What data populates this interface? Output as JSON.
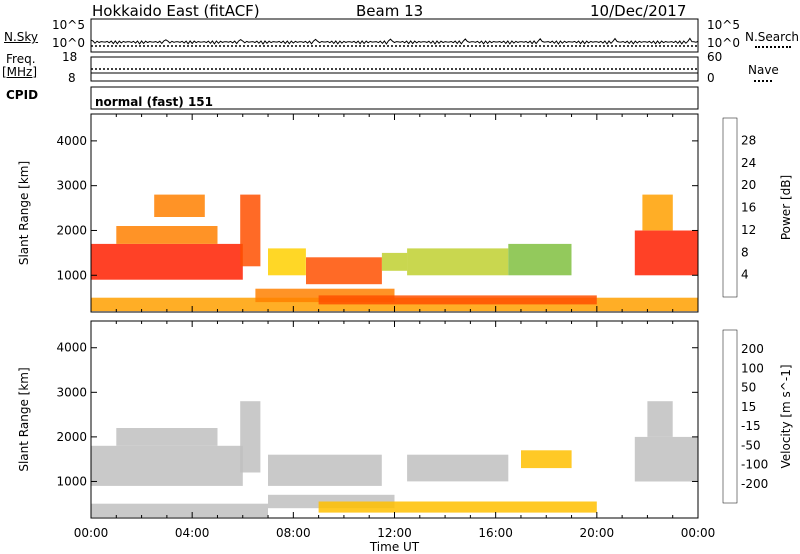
{
  "header": {
    "station": "Hokkaido East (fitACF)",
    "beam": "Beam 13",
    "date": "10/Dec/2017"
  },
  "noise_panel": {
    "left_label": "N.Sky",
    "right_label": "N.Search",
    "tick_top": "10^5",
    "tick_bottom": "10^0"
  },
  "freq_panel": {
    "left_label_line1": "Freq.",
    "left_label_line2": "[MHz]",
    "left_tick_top": "18",
    "left_tick_bottom": "8",
    "right_label": "Nave",
    "right_tick_top": "60",
    "right_tick_bottom": "0",
    "cpid_label": "CPID",
    "cpid_value": "normal (fast) 151"
  },
  "colors": {
    "power": [
      "#1010ff",
      "#2060c0",
      "#208a60",
      "#50a060",
      "#80c040",
      "#c0d030",
      "#ffd000",
      "#ffa000",
      "#ff8000",
      "#ff5000",
      "#ff2000",
      "#ff0000"
    ],
    "velocity": [
      "#ff0000",
      "#ff5000",
      "#ff8000",
      "#ffa000",
      "#ffc000",
      "#c0c0c0",
      "#c0c0c0",
      "#80c040",
      "#40b040",
      "#208a60",
      "#2060a0",
      "#1030c0"
    ]
  },
  "chart_data": [
    {
      "type": "heatmap",
      "name": "power",
      "ylabel": "Slant Range [km]",
      "xlabel": "",
      "xlim": [
        "00:00",
        "24:00"
      ],
      "ylim": [
        180,
        4600
      ],
      "x_ticks": [
        "00:00",
        "04:00",
        "08:00",
        "12:00",
        "16:00",
        "20:00",
        "00:00"
      ],
      "y_ticks": [
        1000,
        2000,
        3000,
        4000
      ],
      "colorbar": {
        "label": "Power [dB]",
        "min": 0,
        "max": 32,
        "ticks": [
          "28",
          "24",
          "20",
          "16",
          "12",
          "8",
          "4"
        ]
      },
      "regions": [
        {
          "t": [
            0.0,
            6.0
          ],
          "r": [
            900,
            1700
          ],
          "value": 28
        },
        {
          "t": [
            1.0,
            5.0
          ],
          "r": [
            1700,
            2100
          ],
          "value": 22
        },
        {
          "t": [
            2.5,
            4.5
          ],
          "r": [
            2300,
            2800
          ],
          "value": 22
        },
        {
          "t": [
            5.9,
            6.7
          ],
          "r": [
            1200,
            2800
          ],
          "value": 24
        },
        {
          "t": [
            7.0,
            8.5
          ],
          "r": [
            1000,
            1600
          ],
          "value": 18
        },
        {
          "t": [
            8.5,
            11.5
          ],
          "r": [
            800,
            1400
          ],
          "value": 26
        },
        {
          "t": [
            11.5,
            12.5
          ],
          "r": [
            1100,
            1500
          ],
          "value": 14
        },
        {
          "t": [
            12.5,
            16.5
          ],
          "r": [
            1000,
            1600
          ],
          "value": 14
        },
        {
          "t": [
            16.5,
            19.0
          ],
          "r": [
            1000,
            1700
          ],
          "value": 12
        },
        {
          "t": [
            21.5,
            24.0
          ],
          "r": [
            1000,
            2000
          ],
          "value": 28
        },
        {
          "t": [
            21.8,
            23.0
          ],
          "r": [
            2000,
            2800
          ],
          "value": 20
        },
        {
          "t": [
            0.0,
            24.0
          ],
          "r": [
            200,
            500
          ],
          "value": 20
        },
        {
          "t": [
            6.5,
            12.0
          ],
          "r": [
            400,
            700
          ],
          "value": 22
        },
        {
          "t": [
            9.0,
            20.0
          ],
          "r": [
            350,
            550
          ],
          "value": 26
        }
      ]
    },
    {
      "type": "heatmap",
      "name": "velocity",
      "ylabel": "Slant Range [km]",
      "xlabel": "Time UT",
      "xlim": [
        "00:00",
        "24:00"
      ],
      "ylim": [
        180,
        4600
      ],
      "x_ticks": [
        "00:00",
        "04:00",
        "08:00",
        "12:00",
        "16:00",
        "20:00",
        "00:00"
      ],
      "y_ticks": [
        1000,
        2000,
        3000,
        4000
      ],
      "colorbar": {
        "label": "Velocity [m s^-1]",
        "min": -250,
        "max": 250,
        "ticks": [
          "200",
          "100",
          "50",
          "15",
          "-15",
          "-50",
          "-100",
          "-200"
        ]
      },
      "regions": [
        {
          "t": [
            0.0,
            6.0
          ],
          "r": [
            900,
            1800
          ],
          "value": 0
        },
        {
          "t": [
            1.0,
            5.0
          ],
          "r": [
            1800,
            2200
          ],
          "value": 0
        },
        {
          "t": [
            5.9,
            6.7
          ],
          "r": [
            1200,
            2800
          ],
          "value": 0
        },
        {
          "t": [
            7.0,
            11.5
          ],
          "r": [
            900,
            1600
          ],
          "value": 0
        },
        {
          "t": [
            12.5,
            16.5
          ],
          "r": [
            1000,
            1600
          ],
          "value": 0
        },
        {
          "t": [
            17.0,
            19.0
          ],
          "r": [
            1300,
            1700
          ],
          "value": -60
        },
        {
          "t": [
            21.5,
            24.0
          ],
          "r": [
            1000,
            2000
          ],
          "value": 0
        },
        {
          "t": [
            22.0,
            23.0
          ],
          "r": [
            2000,
            2800
          ],
          "value": 40
        },
        {
          "t": [
            7.0,
            12.0
          ],
          "r": [
            400,
            700
          ],
          "value": 40
        },
        {
          "t": [
            9.0,
            20.0
          ],
          "r": [
            300,
            550
          ],
          "value": -60
        },
        {
          "t": [
            0.0,
            7.0
          ],
          "r": [
            200,
            500
          ],
          "value": -30
        }
      ]
    }
  ]
}
